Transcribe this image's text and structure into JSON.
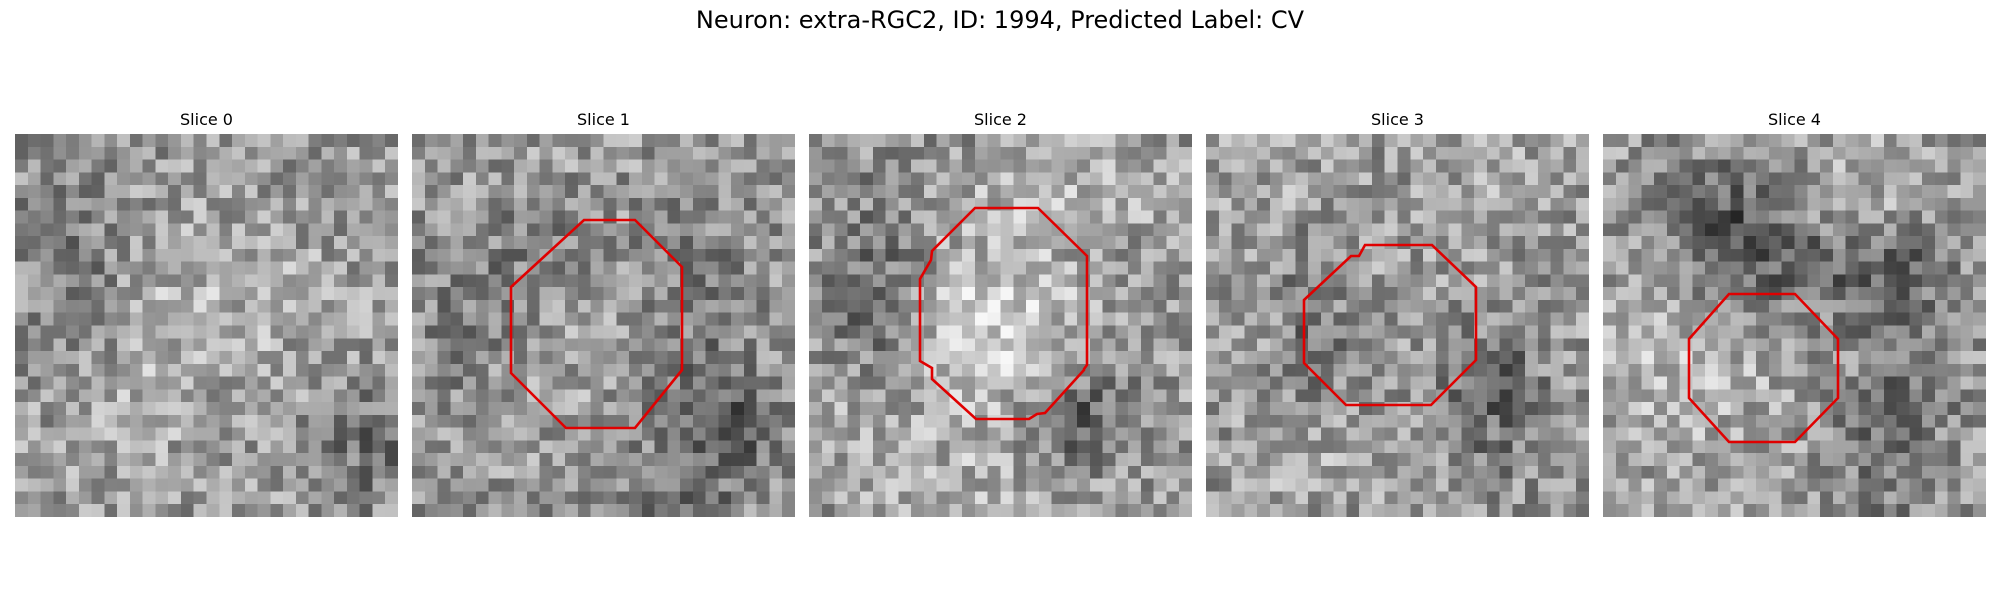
{
  "figure": {
    "title": "Neuron: extra-RGC2, ID: 1994, Predicted Label: CV",
    "outline_color": "#e00000",
    "slices": [
      {
        "label": "Slice 0",
        "has_outline": false
      },
      {
        "label": "Slice 1",
        "has_outline": true
      },
      {
        "label": "Slice 2",
        "has_outline": true
      },
      {
        "label": "Slice 3",
        "has_outline": true
      },
      {
        "label": "Slice 4",
        "has_outline": true
      }
    ]
  }
}
